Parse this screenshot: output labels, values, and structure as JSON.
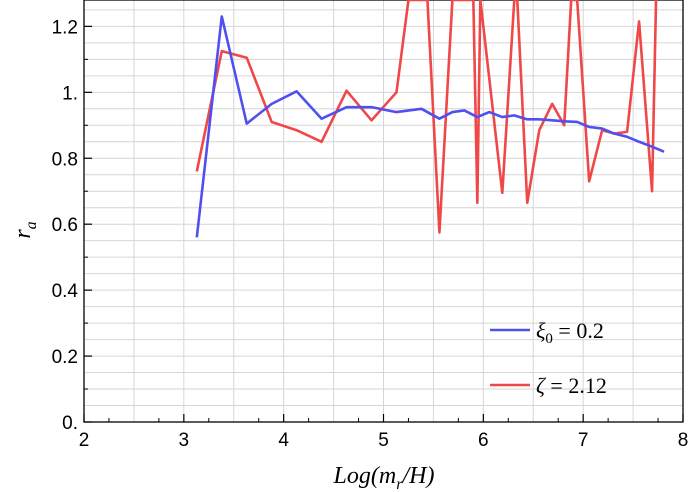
{
  "chart_data": {
    "type": "line",
    "xlabel": "Log(m_r/H)",
    "ylabel": "r_a",
    "xlim": [
      2,
      8
    ],
    "ylim": [
      0,
      1.28
    ],
    "grid": true,
    "legend_position": "bottom-right",
    "x_ticks": [
      "2",
      "3",
      "4",
      "5",
      "6",
      "7",
      "8"
    ],
    "y_ticks": [
      "0.",
      "0.2",
      "0.4",
      "0.6",
      "0.8",
      "1.",
      "1.2"
    ],
    "colors": {
      "blue": "#5050F0",
      "red": "#F04848"
    },
    "series": [
      {
        "name": "ξ0 = 0.2",
        "legend_label": {
          "symbol": "ξ",
          "subscript": "0",
          "rest": " = 0.2"
        },
        "color": "#5050F0",
        "x": [
          3.13,
          3.38,
          3.63,
          3.88,
          4.13,
          4.38,
          4.63,
          4.88,
          5.13,
          5.38,
          5.56,
          5.69,
          5.81,
          5.94,
          6.06,
          6.19,
          6.31,
          6.44,
          6.56,
          6.69,
          6.81,
          6.94,
          7.06,
          7.19,
          7.31,
          7.44,
          7.56,
          7.69,
          7.81
        ],
        "y": [
          0.56,
          1.23,
          0.905,
          0.965,
          1.003,
          0.92,
          0.955,
          0.955,
          0.94,
          0.95,
          0.92,
          0.94,
          0.945,
          0.925,
          0.94,
          0.925,
          0.93,
          0.918,
          0.918,
          0.915,
          0.912,
          0.91,
          0.895,
          0.89,
          0.875,
          0.865,
          0.85,
          0.835,
          0.82
        ]
      },
      {
        "name": "ζ = 2.12",
        "legend_label": {
          "symbol": "ζ",
          "subscript": "",
          "rest": " = 2.12"
        },
        "color": "#F04848",
        "x": [
          3.13,
          3.38,
          3.63,
          3.88,
          4.13,
          4.38,
          4.63,
          4.88,
          5.13,
          5.25,
          5.38,
          5.44,
          5.56,
          5.69,
          5.75,
          5.9,
          5.94,
          5.97,
          6.19,
          6.31,
          6.34,
          6.44,
          6.56,
          6.69,
          6.81,
          6.88,
          6.94,
          7.06,
          7.19,
          7.31,
          7.44,
          7.56,
          7.69,
          7.73
        ],
        "y": [
          0.76,
          1.125,
          1.105,
          0.91,
          0.885,
          0.85,
          1.005,
          0.915,
          1.0,
          1.28,
          1.28,
          1.28,
          0.575,
          1.28,
          1.28,
          1.28,
          0.665,
          1.28,
          0.695,
          1.28,
          1.28,
          0.665,
          0.885,
          0.965,
          0.9,
          1.28,
          1.28,
          0.73,
          0.885,
          0.875,
          0.88,
          1.215,
          0.7,
          1.28
        ]
      }
    ]
  }
}
